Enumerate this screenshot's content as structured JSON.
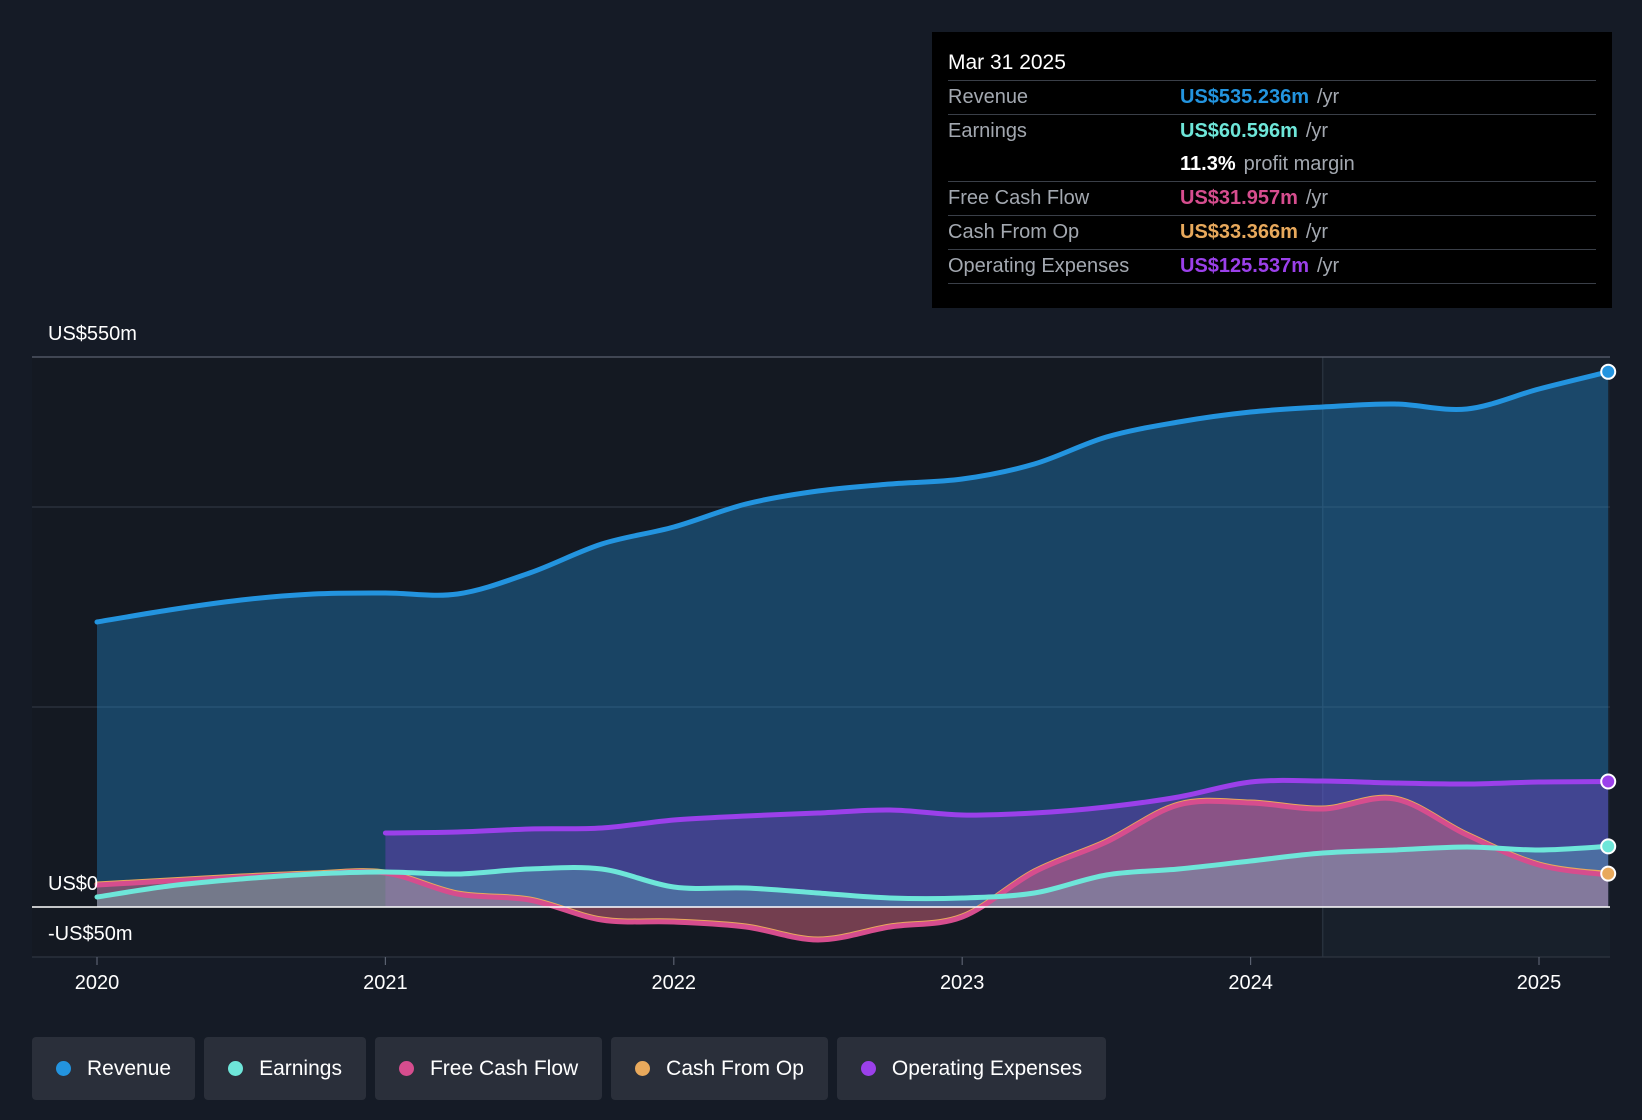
{
  "chart_data": {
    "type": "area",
    "y_max_label": "US$550m",
    "y_zero_label": "US$0",
    "y_min_label": "-US$50m",
    "ylim": [
      -50,
      550
    ],
    "x_ticks": [
      "2020",
      "2021",
      "2022",
      "2023",
      "2024",
      "2025"
    ],
    "x_tick_values": [
      2020,
      2021,
      2022,
      2023,
      2024,
      2025
    ],
    "xlim": [
      2019.78,
      2025.24
    ],
    "highlight_start": 2024.25,
    "series": [
      {
        "name": "Revenue",
        "color": "#2394df",
        "x": [
          2020.0,
          2020.25,
          2020.5,
          2020.75,
          2021.0,
          2021.25,
          2021.5,
          2021.75,
          2022.0,
          2022.25,
          2022.5,
          2022.75,
          2023.0,
          2023.25,
          2023.5,
          2023.75,
          2024.0,
          2024.25,
          2024.5,
          2024.75,
          2025.0,
          2025.24
        ],
        "y": [
          285,
          297,
          307,
          313,
          314,
          313,
          334,
          363,
          380,
          403,
          416,
          423,
          428,
          443,
          470,
          485,
          495,
          500,
          503,
          498,
          518,
          535.2
        ]
      },
      {
        "name": "Earnings",
        "color": "#6ee6d9",
        "x": [
          2020.0,
          2020.25,
          2020.5,
          2020.75,
          2021.0,
          2021.25,
          2021.5,
          2021.75,
          2022.0,
          2022.25,
          2022.5,
          2022.75,
          2023.0,
          2023.25,
          2023.5,
          2023.75,
          2024.0,
          2024.25,
          2024.5,
          2024.75,
          2025.0,
          2025.24
        ],
        "y": [
          10,
          21,
          28,
          33,
          35,
          33,
          38,
          38,
          20,
          19,
          14,
          9,
          9,
          14,
          32,
          38,
          46,
          54,
          57,
          60,
          57,
          60.6
        ]
      },
      {
        "name": "Free Cash Flow",
        "color": "#d64d8e",
        "x": [
          2020.0,
          2020.25,
          2020.5,
          2020.75,
          2021.0,
          2021.25,
          2021.5,
          2021.75,
          2022.0,
          2022.25,
          2022.5,
          2022.75,
          2023.0,
          2023.25,
          2023.5,
          2023.75,
          2024.0,
          2024.25,
          2024.5,
          2024.75,
          2025.0,
          2025.24
        ],
        "y": [
          22,
          26,
          30,
          33,
          34,
          13,
          7,
          -13,
          -15,
          -20,
          -33,
          -20,
          -10,
          35,
          65,
          102,
          104,
          98,
          108,
          72,
          42,
          32
        ]
      },
      {
        "name": "Cash From Op",
        "color": "#e8a95c",
        "x": [
          2020.0,
          2020.25,
          2020.5,
          2020.75,
          2021.0,
          2021.25,
          2021.5,
          2021.75,
          2022.0,
          2022.25,
          2022.5,
          2022.75,
          2023.0,
          2023.25,
          2023.5,
          2023.75,
          2024.0,
          2024.25,
          2024.5,
          2024.75,
          2025.0,
          2025.24
        ],
        "y": [
          23,
          27,
          31,
          34,
          35,
          14,
          8,
          -12,
          -14,
          -19,
          -32,
          -19,
          -9,
          36,
          66,
          103,
          105,
          99,
          109,
          73,
          43,
          33.4
        ]
      },
      {
        "name": "Operating Expenses",
        "color": "#9b40ea",
        "x": [
          2021.0,
          2021.25,
          2021.5,
          2021.75,
          2022.0,
          2022.25,
          2022.5,
          2022.75,
          2023.0,
          2023.25,
          2023.5,
          2023.75,
          2024.0,
          2024.25,
          2024.5,
          2024.75,
          2025.0,
          2025.24
        ],
        "y": [
          74,
          75,
          78,
          79,
          87,
          91,
          94,
          97,
          92,
          94,
          100,
          110,
          125,
          126,
          124,
          123,
          125,
          125.5
        ]
      }
    ]
  },
  "tooltip": {
    "date": "Mar 31 2025",
    "rows": [
      {
        "label": "Revenue",
        "value": "US$535.236m",
        "unit": "/yr",
        "color": "#2394df"
      },
      {
        "label": "Earnings",
        "value": "US$60.596m",
        "unit": "/yr",
        "color": "#6ee6d9"
      },
      {
        "label": "",
        "value": "11.3%",
        "unit": "profit margin",
        "color": "#ffffff"
      },
      {
        "label": "Free Cash Flow",
        "value": "US$31.957m",
        "unit": "/yr",
        "color": "#d64d8e"
      },
      {
        "label": "Cash From Op",
        "value": "US$33.366m",
        "unit": "/yr",
        "color": "#e8a95c"
      },
      {
        "label": "Operating Expenses",
        "value": "US$125.537m",
        "unit": "/yr",
        "color": "#9b40ea"
      }
    ]
  },
  "legend": [
    {
      "label": "Revenue",
      "color": "#2394df"
    },
    {
      "label": "Earnings",
      "color": "#6ee6d9"
    },
    {
      "label": "Free Cash Flow",
      "color": "#d64d8e"
    },
    {
      "label": "Cash From Op",
      "color": "#e8a95c"
    },
    {
      "label": "Operating Expenses",
      "color": "#9b40ea"
    }
  ]
}
